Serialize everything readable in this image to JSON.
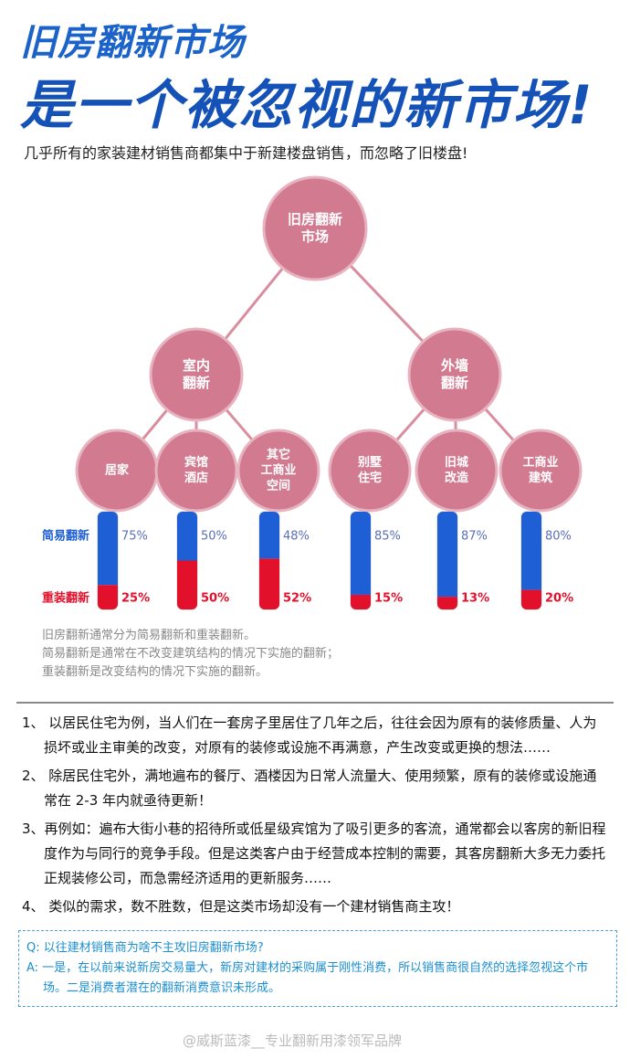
{
  "header": {
    "title_line1": "旧房翻新市场",
    "title_line2": "是一个被忽视的新市场!",
    "subtitle": "几乎所有的家装建材销售商都集中于新建楼盘销售，而忽略了旧楼盘!"
  },
  "tree": {
    "root": [
      "旧房翻新",
      "市场"
    ],
    "branches": [
      {
        "label": [
          "室内",
          "翻新"
        ],
        "leaves": [
          [
            "居家"
          ],
          [
            "宾馆",
            "酒店"
          ],
          [
            "其它",
            "工商业",
            "空间"
          ]
        ]
      },
      {
        "label": [
          "外墙",
          "翻新"
        ],
        "leaves": [
          [
            "别墅",
            "住宅"
          ],
          [
            "旧城",
            "改造"
          ],
          [
            "工商业",
            "建筑"
          ]
        ]
      }
    ]
  },
  "chart_data": {
    "type": "stacked-gauge",
    "series": [
      {
        "name": "简易翻新",
        "color": "#1f5fd6",
        "values": [
          75,
          50,
          48,
          85,
          87,
          80
        ],
        "value_labels": [
          "75%",
          "50%",
          "48%",
          "85%",
          "87%",
          "80%"
        ]
      },
      {
        "name": "重装翻新",
        "color": "#e3102b",
        "values": [
          25,
          50,
          52,
          15,
          13,
          20
        ],
        "value_labels": [
          "25%",
          "50%",
          "52%",
          "15%",
          "13%",
          "20%"
        ]
      }
    ]
  },
  "notes": [
    "旧房翻新通常分为简易翻新和重装翻新。",
    "简易翻新是通常在不改变建筑结构的情况下实施的翻新；",
    "重装翻新是改变结构的情况下实施的翻新。"
  ],
  "paragraphs": [
    "1、 以居民住宅为例，当人们在一套房子里居住了几年之后，往往会因为原有的装修质量、人为损坏或业主审美的改变，对原有的装修或设施不再满意，产生改变或更换的想法……",
    "2、 除居民住宅外，满地遍布的餐厅、酒楼因为日常人流量大、使用频繁，原有的装修或设施通常在 2-3 年内就亟待更新！",
    "3、再例如：遍布大街小巷的招待所或低星级宾馆为了吸引更多的客流，通常都会以客房的新旧程度作为与同行的竞争手段。但是这类客户由于经营成本控制的需要，其客房翻新大多无力委托正规装修公司，而急需经济适用的更新服务……",
    "4、 类似的需求，数不胜数，但是这类市场却没有一个建材销售商主攻！"
  ],
  "qa": {
    "question": "Q: 以往建材销售商为啥不主攻旧房翻新市场?",
    "answer": "A: 一是，在以前来说新房交易量大，新房对建材的采购属于刚性消费，所以销售商很自然的选择忽视这个市场。二是消费者潜在的翻新消费意识未形成。"
  },
  "watermark": "@威斯蓝漆__专业翻新用漆领军品牌"
}
